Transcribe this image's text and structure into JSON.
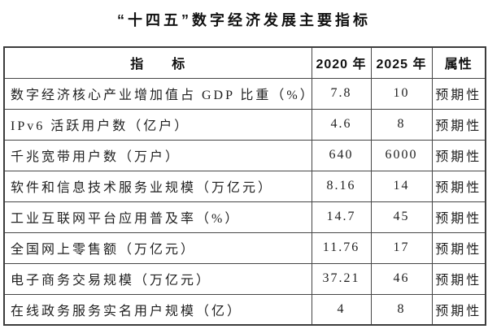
{
  "title": "“十四五”数字经济发展主要指标",
  "table": {
    "columns": {
      "indicator": "指　　标",
      "year2020": "2020 年",
      "year2025": "2025 年",
      "attribute": "属性"
    },
    "rows": [
      {
        "indicator": "数字经济核心产业增加值占 GDP 比重（%）",
        "y2020": "7.8",
        "y2025": "10",
        "attribute": "预期性"
      },
      {
        "indicator": "IPv6 活跃用户数（亿户）",
        "y2020": "4.6",
        "y2025": "8",
        "attribute": "预期性"
      },
      {
        "indicator": "千兆宽带用户数（万户）",
        "y2020": "640",
        "y2025": "6000",
        "attribute": "预期性"
      },
      {
        "indicator": "软件和信息技术服务业规模（万亿元）",
        "y2020": "8.16",
        "y2025": "14",
        "attribute": "预期性"
      },
      {
        "indicator": "工业互联网平台应用普及率（%）",
        "y2020": "14.7",
        "y2025": "45",
        "attribute": "预期性"
      },
      {
        "indicator": "全国网上零售额（万亿元）",
        "y2020": "11.76",
        "y2025": "17",
        "attribute": "预期性"
      },
      {
        "indicator": "电子商务交易规模（万亿元）",
        "y2020": "37.21",
        "y2025": "46",
        "attribute": "预期性"
      },
      {
        "indicator": "在线政务服务实名用户规模（亿）",
        "y2020": "4",
        "y2025": "8",
        "attribute": "预期性"
      }
    ]
  },
  "colors": {
    "background": "#ffffff",
    "text": "#1f1f1f",
    "border": "#454545"
  }
}
